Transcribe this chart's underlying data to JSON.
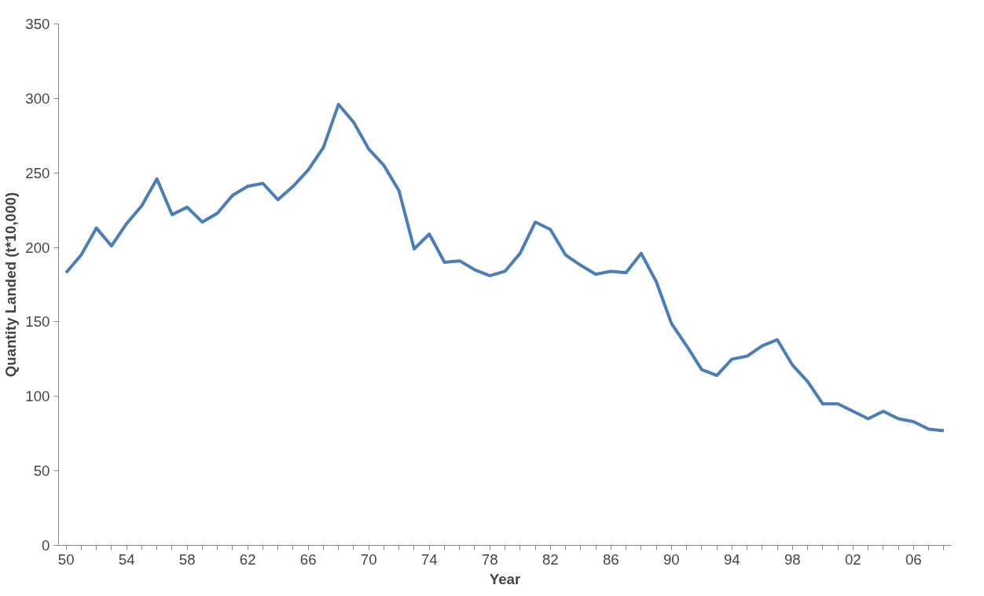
{
  "chart_data": {
    "type": "line",
    "xlabel": "Year",
    "ylabel": "Quantity Landed (t*10,000)",
    "categories": [
      "50",
      null,
      null,
      null,
      "54",
      null,
      null,
      null,
      "58",
      null,
      null,
      null,
      "62",
      null,
      null,
      null,
      "66",
      null,
      null,
      null,
      "70",
      null,
      null,
      null,
      "74",
      null,
      null,
      null,
      "78",
      null,
      null,
      null,
      "82",
      null,
      null,
      null,
      "86",
      null,
      null,
      null,
      "90",
      null,
      null,
      null,
      "94",
      null,
      null,
      null,
      "98",
      null,
      null,
      null,
      "02",
      null,
      null,
      null,
      "06",
      null,
      null
    ],
    "series": [
      {
        "color": "#4a7ebb",
        "values": [
          183,
          195,
          213,
          201,
          216,
          228,
          246,
          222,
          227,
          217,
          223,
          235,
          241,
          243,
          232,
          241,
          252,
          267,
          296,
          284,
          266,
          255,
          238,
          199,
          209,
          190,
          191,
          185,
          181,
          184,
          196,
          217,
          212,
          195,
          188,
          182,
          184,
          183,
          196,
          177,
          149,
          134,
          118,
          114,
          125,
          127,
          134,
          138,
          121,
          110,
          95,
          95,
          90,
          85,
          90,
          85,
          83,
          78,
          77
        ]
      }
    ],
    "ylim": [
      0,
      350
    ],
    "yticks": [
      0,
      50,
      100,
      150,
      200,
      250,
      300,
      350
    ]
  }
}
